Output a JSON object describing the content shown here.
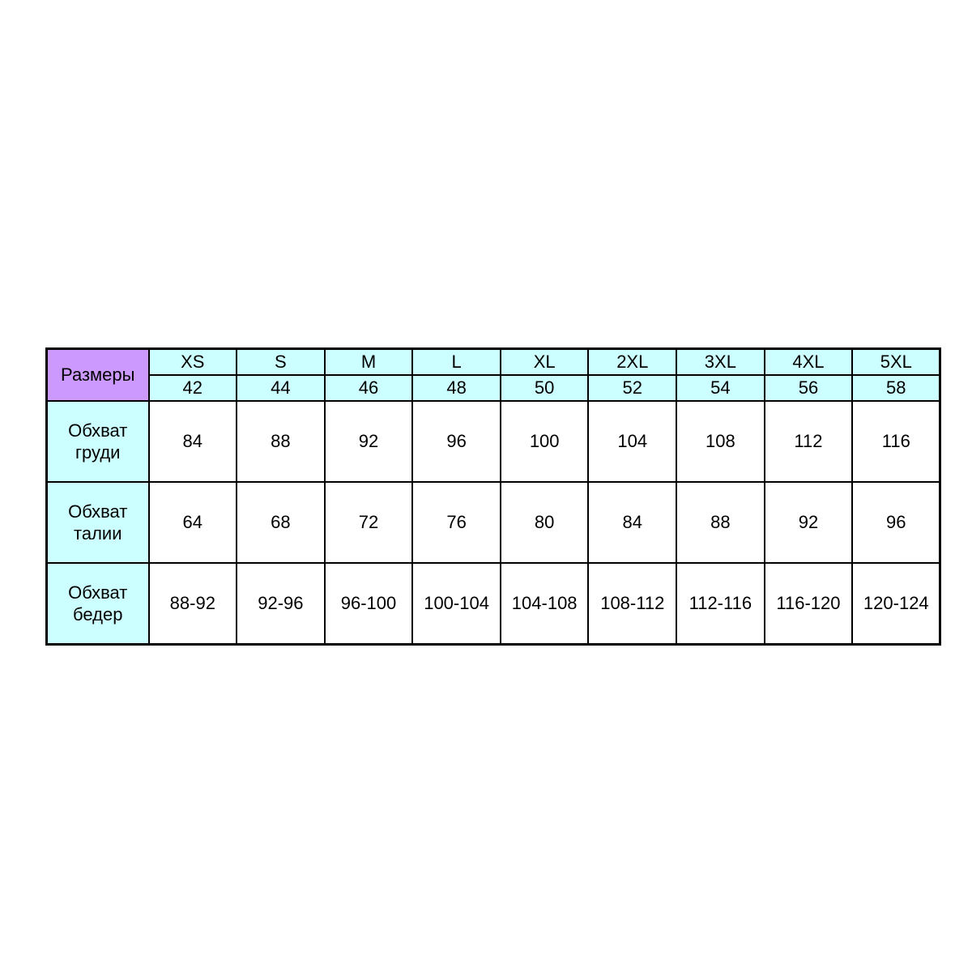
{
  "colors": {
    "corner_bg": "#cc99ff",
    "header_bg": "#ccffff",
    "label_bg": "#ccffff",
    "cell_bg": "#ffffff",
    "border": "#000000",
    "text": "#000000",
    "page_bg": "#ffffff"
  },
  "chart_data": {
    "type": "table",
    "title": "Размеры",
    "corner_label": "Размеры",
    "columns": [
      "XS",
      "S",
      "M",
      "L",
      "XL",
      "2XL",
      "3XL",
      "4XL",
      "5XL"
    ],
    "russian_sizes": [
      "42",
      "44",
      "46",
      "48",
      "50",
      "52",
      "54",
      "56",
      "58"
    ],
    "rows": [
      {
        "label": "Обхват груди",
        "values": [
          "84",
          "88",
          "92",
          "96",
          "100",
          "104",
          "108",
          "112",
          "116"
        ]
      },
      {
        "label": "Обхват талии",
        "values": [
          "64",
          "68",
          "72",
          "76",
          "80",
          "84",
          "88",
          "92",
          "96"
        ]
      },
      {
        "label": "Обхват бедер",
        "values": [
          "88-92",
          "92-96",
          "96-100",
          "100-104",
          "104-108",
          "108-112",
          "112-116",
          "116-120",
          "120-124"
        ]
      }
    ]
  }
}
